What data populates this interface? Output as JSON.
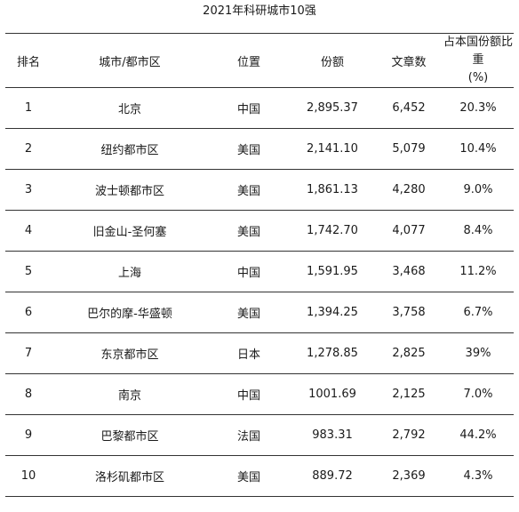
{
  "title": "2021年科研城市10强",
  "columns": {
    "rank": "排名",
    "city": "城市/都市区",
    "location": "位置",
    "share": "份额",
    "articles": "文章数",
    "national_share_line1": "占本国份额比重",
    "national_share_line2": "(%)"
  },
  "rows": [
    {
      "rank": "1",
      "city": "北京",
      "location": "中国",
      "share": "2,895.37",
      "articles": "6,452",
      "national_share": "20.3%"
    },
    {
      "rank": "2",
      "city": "纽约都市区",
      "location": "美国",
      "share": "2,141.10",
      "articles": "5,079",
      "national_share": "10.4%"
    },
    {
      "rank": "3",
      "city": "波士顿都市区",
      "location": "美国",
      "share": "1,861.13",
      "articles": "4,280",
      "national_share": "9.0%"
    },
    {
      "rank": "4",
      "city": "旧金山-圣何塞",
      "location": "美国",
      "share": "1,742.70",
      "articles": "4,077",
      "national_share": "8.4%"
    },
    {
      "rank": "5",
      "city": "上海",
      "location": "中国",
      "share": "1,591.95",
      "articles": "3,468",
      "national_share": "11.2%"
    },
    {
      "rank": "6",
      "city": "巴尔的摩-华盛顿",
      "location": "美国",
      "share": "1,394.25",
      "articles": "3,758",
      "national_share": "6.7%"
    },
    {
      "rank": "7",
      "city": "东京都市区",
      "location": "日本",
      "share": "1,278.85",
      "articles": "2,825",
      "national_share": "39%"
    },
    {
      "rank": "8",
      "city": "南京",
      "location": "中国",
      "share": "1001.69",
      "articles": "2,125",
      "national_share": "7.0%"
    },
    {
      "rank": "9",
      "city": "巴黎都市区",
      "location": "法国",
      "share": "983.31",
      "articles": "2,792",
      "national_share": "44.2%"
    },
    {
      "rank": "10",
      "city": "洛杉矶都市区",
      "location": "美国",
      "share": "889.72",
      "articles": "2,369",
      "national_share": "4.3%"
    }
  ]
}
